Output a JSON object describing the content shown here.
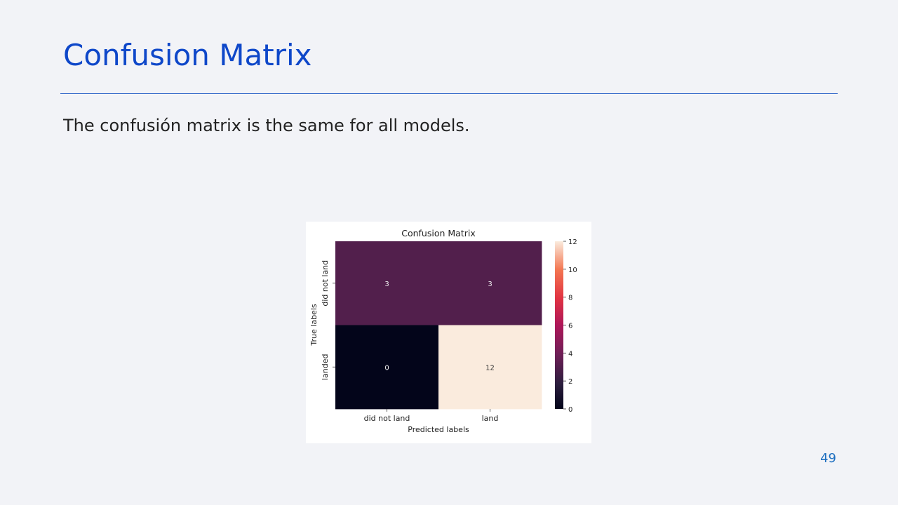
{
  "slide": {
    "title": "Confusion Matrix",
    "text": "The confusión matrix is the same for all models.",
    "page_number": "49"
  },
  "colors": {
    "background": "#f2f3f7",
    "title": "#0e47c9",
    "rule": "#2e64c8",
    "body_text": "#222222",
    "page_number": "#1e6fc0"
  },
  "chart_data": {
    "type": "heatmap",
    "title": "Confusion Matrix",
    "xlabel": "Predicted labels",
    "ylabel": "True labels",
    "x_categories": [
      "did not land",
      "land"
    ],
    "y_categories": [
      "did not land",
      "landed"
    ],
    "values": [
      [
        3,
        3
      ],
      [
        0,
        12
      ]
    ],
    "colorbar": {
      "min": 0,
      "max": 12,
      "ticks": [
        0,
        2,
        4,
        6,
        8,
        10,
        12
      ]
    },
    "grid": false,
    "legend": "colorbar-right"
  }
}
